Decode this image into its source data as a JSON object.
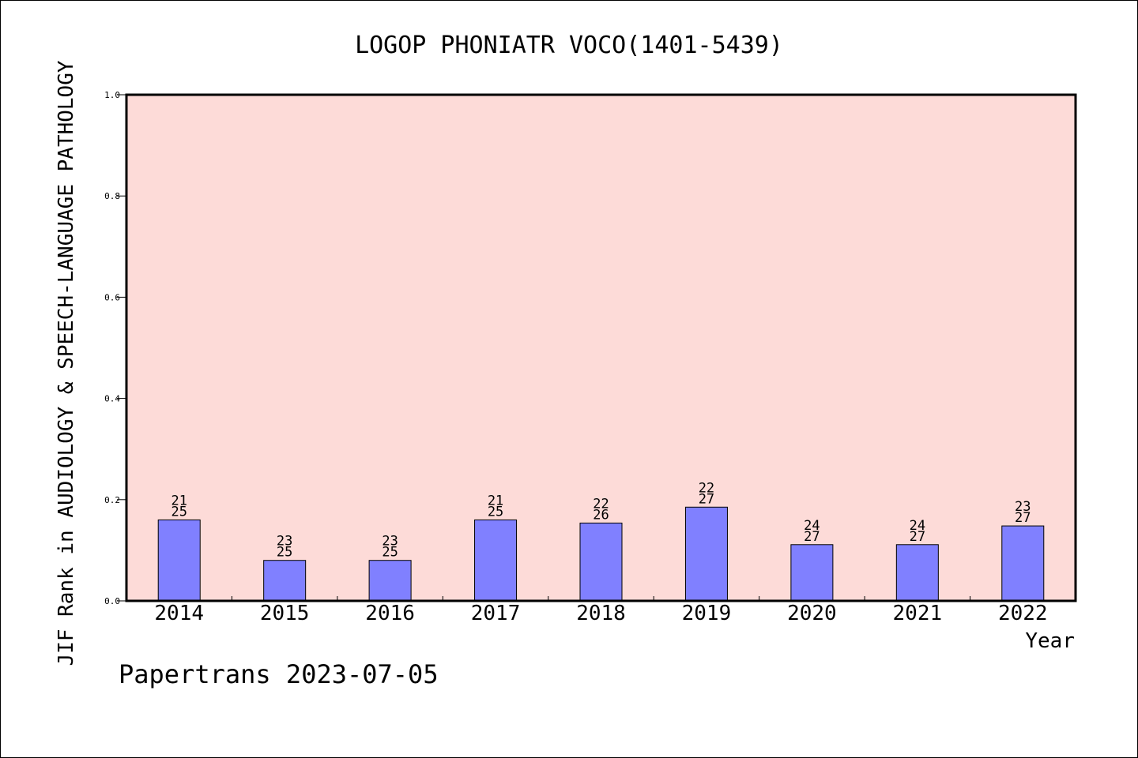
{
  "chart_data": {
    "type": "bar",
    "title": "LOGOP PHONIATR VOCO(1401-5439)",
    "xlabel": "Year",
    "ylabel": "JIF Rank in AUDIOLOGY & SPEECH-LANGUAGE PATHOLOGY",
    "categories": [
      "2014",
      "2015",
      "2016",
      "2017",
      "2018",
      "2019",
      "2020",
      "2021",
      "2022"
    ],
    "values": [
      0.16,
      0.08,
      0.08,
      0.16,
      0.1538,
      0.1852,
      0.1111,
      0.1111,
      0.1481
    ],
    "bar_labels": [
      [
        "21",
        "25"
      ],
      [
        "23",
        "25"
      ],
      [
        "23",
        "25"
      ],
      [
        "21",
        "25"
      ],
      [
        "22",
        "26"
      ],
      [
        "22",
        "27"
      ],
      [
        "24",
        "27"
      ],
      [
        "24",
        "27"
      ],
      [
        "23",
        "27"
      ]
    ],
    "ylim": [
      0,
      1.0
    ],
    "yticks": [
      "0.0",
      "0.2",
      "0.4",
      "0.6",
      "0.8",
      "1.0"
    ],
    "grid": false,
    "colors": {
      "bar": "#8080ff",
      "plot_background": "#fddbd8",
      "frame": "#000000"
    }
  },
  "footer": "Papertrans 2023-07-05"
}
